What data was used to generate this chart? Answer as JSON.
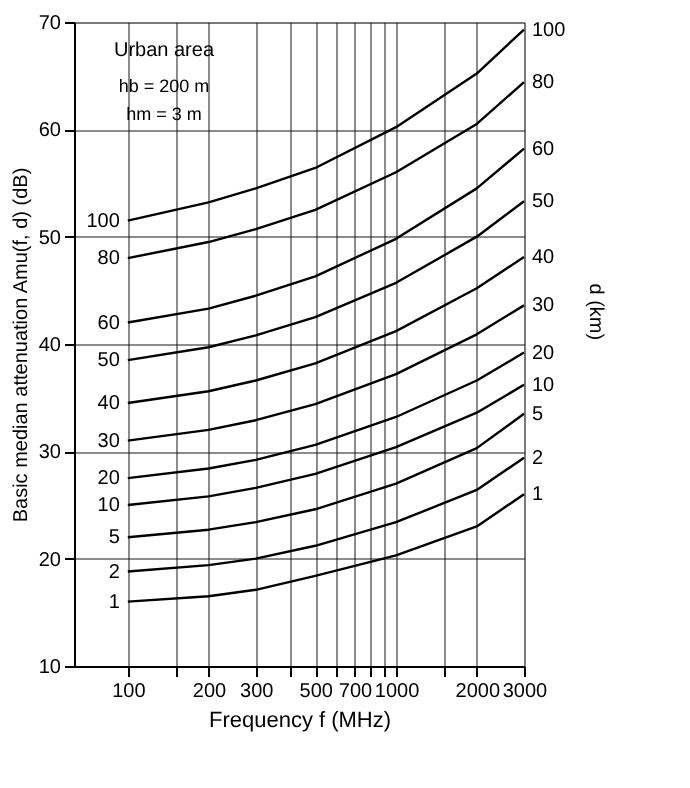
{
  "chart_data": {
    "type": "line",
    "xlabel": "Frequency f (MHz)",
    "ylabel": "Basic median attenuation Amu(f, d) (dB)",
    "legend_title": "d (km)",
    "annotations": [
      "Urban area",
      "hb = 200 m",
      "hm = 3 m"
    ],
    "x": [
      100,
      200,
      300,
      500,
      1000,
      2000,
      3000
    ],
    "series": [
      {
        "name": "100",
        "color": "#000000",
        "values": [
          51.5,
          53.2,
          54.5,
          56.4,
          60.2,
          65.2,
          69.3
        ]
      },
      {
        "name": "80",
        "color": "#000000",
        "values": [
          48,
          49.5,
          50.7,
          52.5,
          56,
          60.5,
          64.4
        ]
      },
      {
        "name": "60",
        "color": "#000000",
        "values": [
          42,
          43.3,
          44.5,
          46.3,
          49.8,
          54.5,
          58.2
        ]
      },
      {
        "name": "50",
        "color": "#000000",
        "values": [
          38.5,
          39.7,
          40.8,
          42.5,
          45.7,
          50,
          53.3
        ]
      },
      {
        "name": "40",
        "color": "#000000",
        "values": [
          34.5,
          35.6,
          36.6,
          38.2,
          41.2,
          45.2,
          48.1
        ]
      },
      {
        "name": "30",
        "color": "#000000",
        "values": [
          31,
          32,
          32.9,
          34.4,
          37.2,
          40.9,
          43.6
        ]
      },
      {
        "name": "20",
        "color": "#000000",
        "values": [
          27.5,
          28.4,
          29.2,
          30.6,
          33.2,
          36.6,
          39.2
        ]
      },
      {
        "name": "10",
        "color": "#000000",
        "values": [
          25,
          25.8,
          26.6,
          27.9,
          30.4,
          33.6,
          36.2
        ]
      },
      {
        "name": "5",
        "color": "#000000",
        "values": [
          22,
          22.7,
          23.4,
          24.6,
          27,
          30.3,
          33.5
        ]
      },
      {
        "name": "2",
        "color": "#000000",
        "values": [
          18.8,
          19.4,
          20,
          21.2,
          23.4,
          26.4,
          29.4
        ]
      },
      {
        "name": "1",
        "color": "#000000",
        "values": [
          16,
          16.5,
          17.1,
          18.4,
          20.3,
          23,
          26
        ]
      }
    ],
    "log": "x",
    "xlim": [
      63,
      3000
    ],
    "xticks": [
      100,
      {
        "value": 150,
        "label": null
      },
      200,
      300,
      {
        "value": 400,
        "label": null
      },
      500,
      {
        "value": 600,
        "label": null
      },
      700,
      {
        "value": 800,
        "label": null
      },
      {
        "value": 900,
        "label": null
      },
      1000,
      {
        "value": 1500,
        "label": null
      },
      2000,
      3000
    ],
    "ylim": [
      10,
      70
    ],
    "yticks": [
      10,
      20,
      30,
      40,
      50,
      60,
      70
    ],
    "grid": true,
    "legend": false,
    "marker": "none",
    "line_style": "solid"
  }
}
